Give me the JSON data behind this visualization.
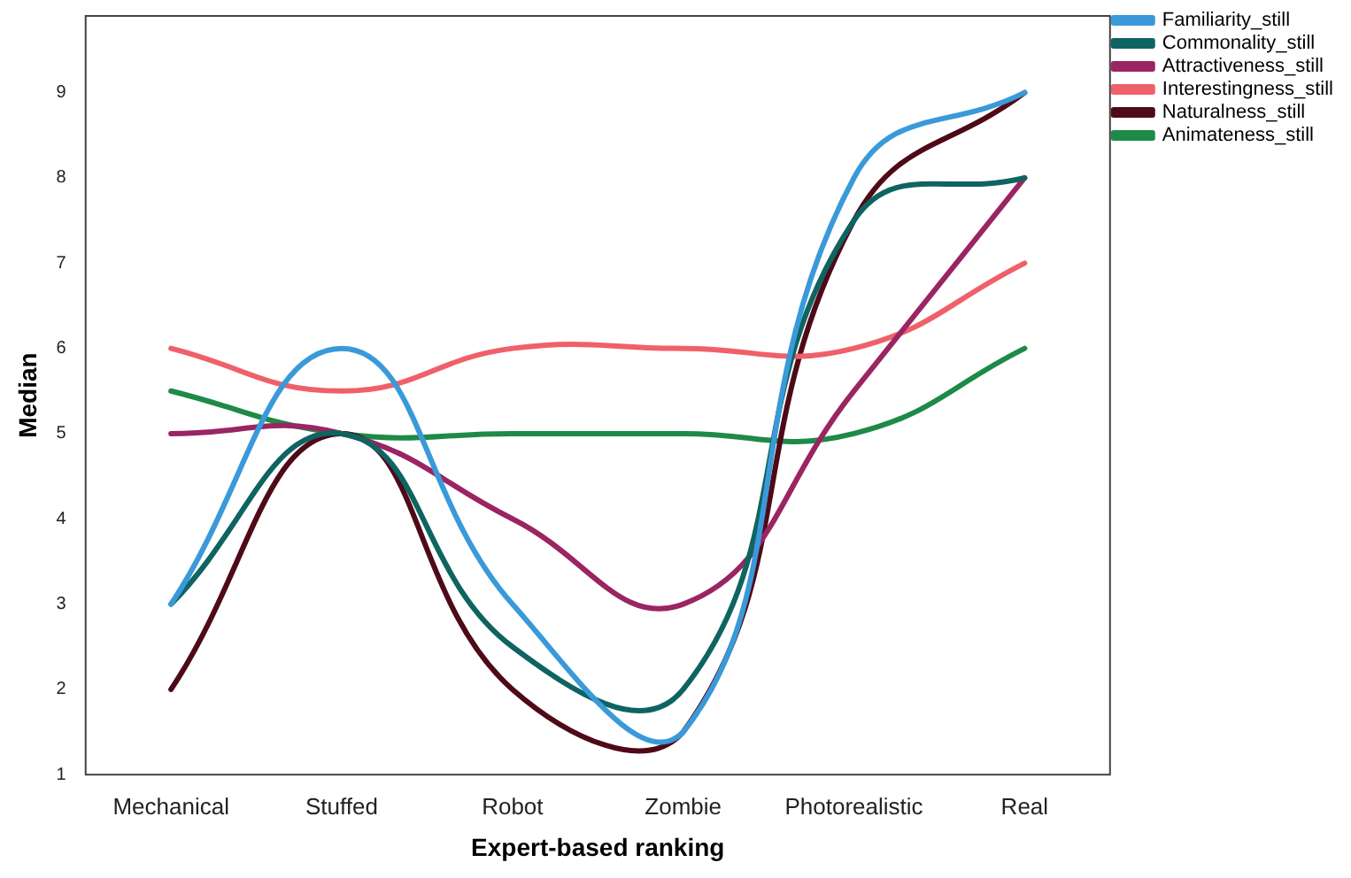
{
  "chart_data": {
    "type": "line",
    "xlabel": "Expert-based ranking",
    "ylabel": "Median",
    "categories": [
      "Mechanical",
      "Stuffed",
      "Robot",
      "Zombie",
      "Photorealistic",
      "Real"
    ],
    "series": [
      {
        "name": "Familiarity_still",
        "color": "#3a9ad9",
        "values": [
          3,
          6,
          3,
          1.5,
          8,
          9
        ]
      },
      {
        "name": "Commonality_still",
        "color": "#0e6461",
        "values": [
          3,
          5,
          2.5,
          2,
          7.5,
          8
        ]
      },
      {
        "name": "Attractiveness_still",
        "color": "#9b2462",
        "values": [
          5,
          5,
          4,
          3,
          5.5,
          8
        ]
      },
      {
        "name": "Interestingness_still",
        "color": "#f0606a",
        "values": [
          6,
          5.5,
          6,
          6,
          6,
          7
        ]
      },
      {
        "name": "Naturalness_still",
        "color": "#4f0a17",
        "values": [
          2,
          5,
          2,
          1.5,
          7.5,
          9
        ]
      },
      {
        "name": "Animateness_still",
        "color": "#1e8a48",
        "values": [
          5.5,
          5,
          5,
          5,
          5,
          6
        ]
      }
    ],
    "ylim": [
      1,
      9.9
    ],
    "yticks": [
      1,
      2,
      3,
      4,
      5,
      6,
      7,
      8,
      9
    ],
    "grid": false,
    "legend": "top right",
    "marker": "none",
    "line_style": "solid"
  }
}
